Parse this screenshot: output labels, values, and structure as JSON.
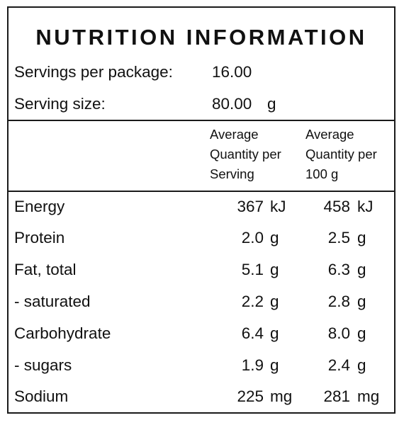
{
  "title": "NUTRITION INFORMATION",
  "servings_per_package": {
    "label": "Servings per package:",
    "value": "16.00"
  },
  "serving_size": {
    "label": "Serving size:",
    "value": "80.00",
    "unit": "g"
  },
  "columns": {
    "per_serving": [
      "Average",
      "Quantity per",
      "Serving"
    ],
    "per_100g": [
      "Average",
      "Quantity per",
      "100 g"
    ]
  },
  "nutrients": [
    {
      "name": "Energy",
      "per_serving": "367",
      "per_serving_unit": "kJ",
      "per_100g": "458",
      "per_100g_unit": "kJ"
    },
    {
      "name": "Protein",
      "per_serving": "2.0",
      "per_serving_unit": "g",
      "per_100g": "2.5",
      "per_100g_unit": "g"
    },
    {
      "name": "Fat, total",
      "per_serving": "5.1",
      "per_serving_unit": "g",
      "per_100g": "6.3",
      "per_100g_unit": "g"
    },
    {
      "name": "- saturated",
      "per_serving": "2.2",
      "per_serving_unit": "g",
      "per_100g": "2.8",
      "per_100g_unit": "g"
    },
    {
      "name": "Carbohydrate",
      "per_serving": "6.4",
      "per_serving_unit": "g",
      "per_100g": "8.0",
      "per_100g_unit": "g"
    },
    {
      "name": "- sugars",
      "per_serving": "1.9",
      "per_serving_unit": "g",
      "per_100g": "2.4",
      "per_100g_unit": "g"
    },
    {
      "name": "Sodium",
      "per_serving": "225",
      "per_serving_unit": "mg",
      "per_100g": "281",
      "per_100g_unit": "mg"
    }
  ]
}
